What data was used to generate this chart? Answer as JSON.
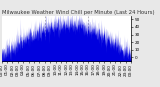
{
  "title": "Milwaukee Weather Wind Chill per Minute (Last 24 Hours)",
  "background_color": "#e8e8e8",
  "plot_bg_color": "#ffffff",
  "line_color": "#0000dd",
  "fill_color": "#0000dd",
  "y_min": -5,
  "y_max": 55,
  "y_ticks": [
    0,
    10,
    20,
    30,
    40,
    50
  ],
  "num_points": 1440,
  "vline_positions": [
    0.333,
    0.667
  ],
  "vline_color": "#aaaaaa",
  "title_fontsize": 3.8,
  "tick_fontsize": 3.0,
  "seed": 42
}
